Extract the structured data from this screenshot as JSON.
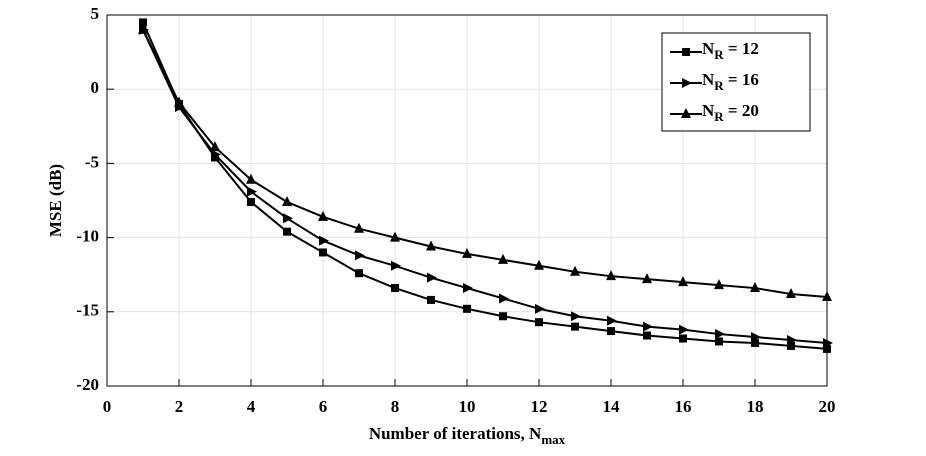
{
  "chart_data": {
    "type": "line",
    "xlabel": "Number of iterations, Nmax",
    "ylabel": "MSE (dB)",
    "x": [
      1,
      2,
      3,
      4,
      5,
      6,
      7,
      8,
      9,
      10,
      11,
      12,
      13,
      14,
      15,
      16,
      17,
      18,
      19,
      20
    ],
    "series": [
      {
        "name": "NR = 12",
        "color": "#000000",
        "marker": "square",
        "values": [
          4.5,
          -1.0,
          -4.6,
          -7.6,
          -9.6,
          -11.0,
          -12.4,
          -13.4,
          -14.2,
          -14.8,
          -15.3,
          -15.7,
          -16.0,
          -16.3,
          -16.6,
          -16.8,
          -17.0,
          -17.1,
          -17.3,
          -17.5
        ]
      },
      {
        "name": "NR = 16",
        "color": "#000000",
        "marker": "triangle-right",
        "values": [
          4.0,
          -1.2,
          -4.4,
          -6.9,
          -8.7,
          -10.2,
          -11.2,
          -11.9,
          -12.7,
          -13.4,
          -14.1,
          -14.8,
          -15.3,
          -15.6,
          -16.0,
          -16.2,
          -16.5,
          -16.7,
          -16.9,
          -17.1
        ]
      },
      {
        "name": "NR = 20",
        "color": "#000000",
        "marker": "triangle-up",
        "values": [
          4.0,
          -0.9,
          -3.9,
          -6.1,
          -7.6,
          -8.6,
          -9.4,
          -10.0,
          -10.6,
          -11.1,
          -11.5,
          -11.9,
          -12.3,
          -12.6,
          -12.8,
          -13.0,
          -13.2,
          -13.4,
          -13.8,
          -14.0
        ]
      }
    ],
    "xlim": [
      0,
      20
    ],
    "xticks": [
      0,
      2,
      4,
      6,
      8,
      10,
      12,
      14,
      16,
      18,
      20
    ],
    "ylim": [
      -20,
      5
    ],
    "yticks": [
      -20,
      -15,
      -10,
      -5,
      0,
      5
    ],
    "grid": true,
    "legend": "upper right"
  }
}
